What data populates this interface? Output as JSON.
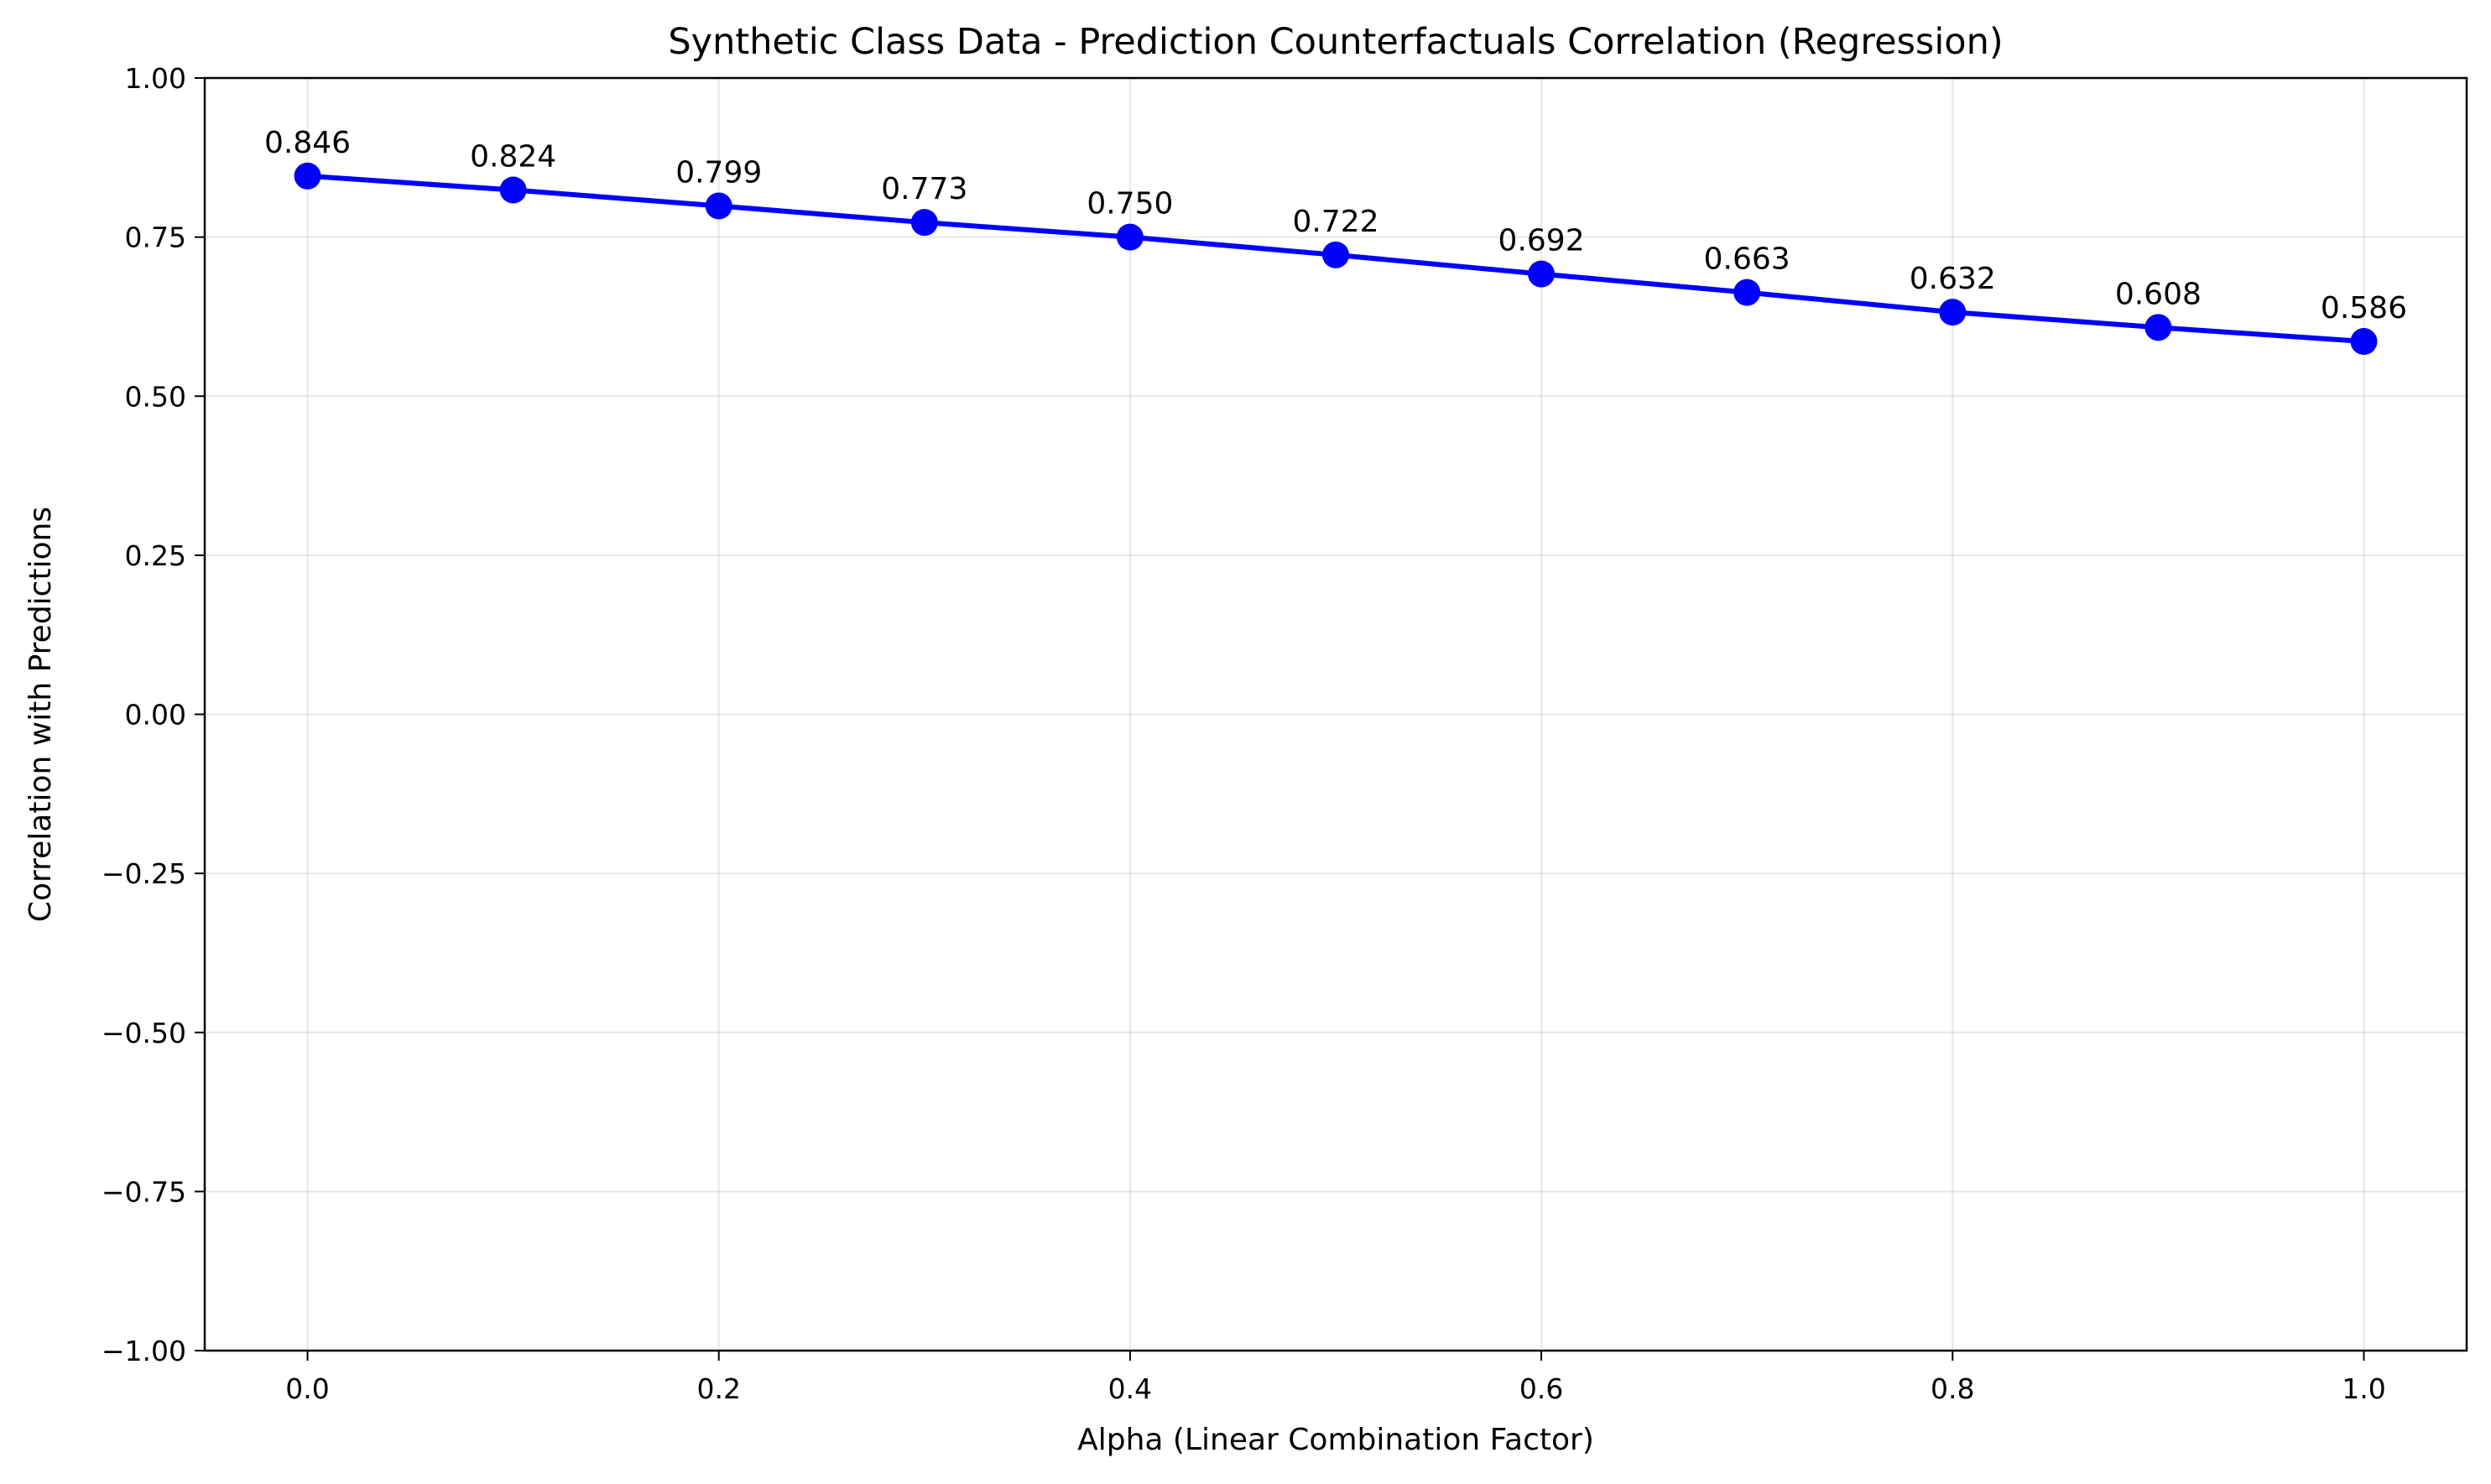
{
  "chart_data": {
    "type": "line",
    "title": "Synthetic Class Data - Prediction Counterfactuals Correlation (Regression)",
    "xlabel": "Alpha (Linear Combination Factor)",
    "ylabel": "Correlation with Predictions",
    "xlim": [
      -0.05,
      1.05
    ],
    "ylim": [
      -1.0,
      1.0
    ],
    "xticks": [
      0.0,
      0.2,
      0.4,
      0.6,
      0.8,
      1.0
    ],
    "xtick_labels": [
      "0.0",
      "0.2",
      "0.4",
      "0.6",
      "0.8",
      "1.0"
    ],
    "yticks": [
      -1.0,
      -0.75,
      -0.5,
      -0.25,
      0.0,
      0.25,
      0.5,
      0.75,
      1.0
    ],
    "ytick_labels": [
      "−1.00",
      "−0.75",
      "−0.50",
      "−0.25",
      "0.00",
      "0.25",
      "0.50",
      "0.75",
      "1.00"
    ],
    "grid": true,
    "series": [
      {
        "color": "#0000ff",
        "x": [
          0.0,
          0.1,
          0.2,
          0.3,
          0.4,
          0.5,
          0.6,
          0.7,
          0.8,
          0.9,
          1.0
        ],
        "y": [
          0.846,
          0.824,
          0.799,
          0.773,
          0.75,
          0.722,
          0.692,
          0.663,
          0.632,
          0.608,
          0.586
        ],
        "labels": [
          "0.846",
          "0.824",
          "0.799",
          "0.773",
          "0.750",
          "0.722",
          "0.692",
          "0.663",
          "0.632",
          "0.608",
          "0.586"
        ]
      }
    ]
  }
}
